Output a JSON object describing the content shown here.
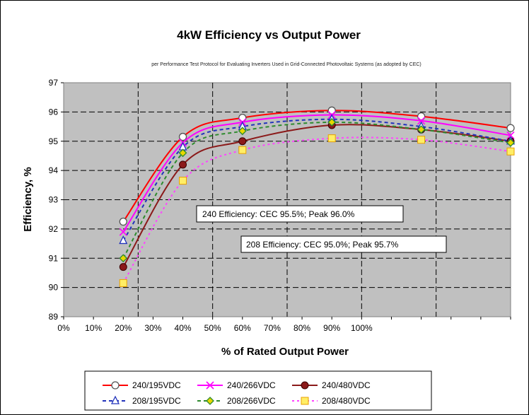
{
  "chart_data": {
    "type": "line",
    "title": "4kW Efficiency vs Output Power",
    "subtitle": "per Performance Test Protocol for Evaluating Inverters Used in Grid-Connected Photovoltaic Systems (as adopted by CEC)",
    "xlabel": "% of Rated Output Power",
    "ylabel": "Efficiency, %",
    "ylim": [
      89,
      97
    ],
    "yticks": [
      "89",
      "90",
      "91",
      "92",
      "93",
      "94",
      "95",
      "96",
      "97"
    ],
    "xticks": [
      "0%",
      "10%",
      "20%",
      "30%",
      "40%",
      "50%",
      "60%",
      "70%",
      "80%",
      "90%",
      "100%"
    ],
    "grid": true,
    "x": [
      20,
      40,
      60,
      90,
      120,
      150
    ],
    "series": [
      {
        "name": "240/195VDC",
        "color": "#ff0000",
        "marker": "circle",
        "dash": "",
        "values": [
          92.25,
          95.15,
          95.8,
          96.05,
          95.85,
          95.45
        ]
      },
      {
        "name": "240/266VDC",
        "color": "#ff00ff",
        "marker": "x",
        "dash": "",
        "values": [
          91.9,
          94.95,
          95.65,
          95.9,
          95.7,
          95.2
        ]
      },
      {
        "name": "240/480VDC",
        "color": "#8b1a1a",
        "marker": "dot",
        "dash": "",
        "values": [
          90.7,
          94.2,
          95.0,
          95.55,
          95.4,
          95.0
        ]
      },
      {
        "name": "208/195VDC",
        "color": "#2233bb",
        "marker": "triangle",
        "dash": "5,4",
        "values": [
          91.6,
          94.8,
          95.5,
          95.75,
          95.5,
          95.0
        ]
      },
      {
        "name": "208/266VDC",
        "color": "#2e8b2e",
        "marker": "diamond",
        "dash": "5,4",
        "values": [
          91.0,
          94.6,
          95.35,
          95.65,
          95.4,
          94.95
        ]
      },
      {
        "name": "208/480VDC",
        "color": "#ff44ff",
        "marker": "square",
        "dash": "3,4",
        "values": [
          90.15,
          93.65,
          94.7,
          95.1,
          95.05,
          94.65
        ]
      }
    ],
    "annotations": [
      "240 Efficiency: CEC 95.5%; Peak 96.0%",
      "208 Efficiency: CEC 95.0%; Peak 95.7%"
    ]
  }
}
